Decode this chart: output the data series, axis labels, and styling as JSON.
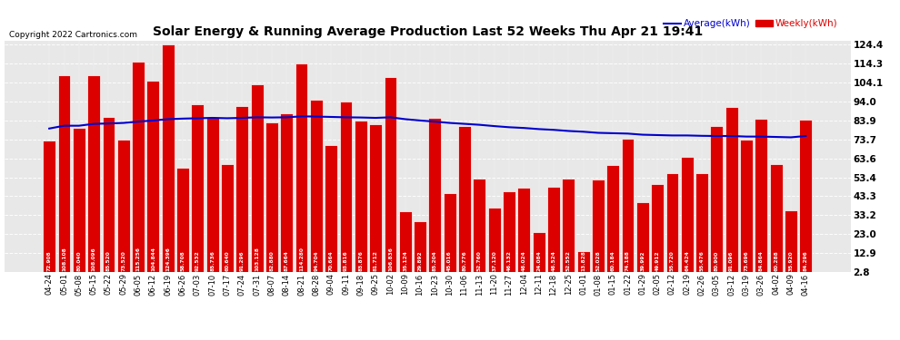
{
  "title": "Solar Energy & Running Average Production Last 52 Weeks Thu Apr 21 19:41",
  "copyright": "Copyright 2022 Cartronics.com",
  "legend_average": "Average(kWh)",
  "legend_weekly": "Weekly(kWh)",
  "bar_color": "#dd0000",
  "bar_edge_color": "#ffffff",
  "average_line_color": "#0000cc",
  "background_color": "#e8e8e8",
  "ylim_min": 2.8,
  "ylim_max": 124.4,
  "yticks": [
    2.8,
    12.9,
    23.0,
    33.2,
    43.3,
    53.4,
    63.6,
    73.7,
    83.9,
    94.0,
    104.1,
    114.3,
    124.4
  ],
  "categories": [
    "04-24",
    "05-01",
    "05-08",
    "05-15",
    "05-22",
    "05-29",
    "06-05",
    "06-12",
    "06-19",
    "06-26",
    "07-03",
    "07-10",
    "07-17",
    "07-24",
    "07-31",
    "08-07",
    "08-14",
    "08-21",
    "08-28",
    "09-04",
    "09-11",
    "09-18",
    "09-25",
    "10-02",
    "10-09",
    "10-16",
    "10-23",
    "10-30",
    "11-06",
    "11-13",
    "11-20",
    "11-27",
    "12-04",
    "12-11",
    "12-18",
    "12-25",
    "01-01",
    "01-08",
    "01-15",
    "01-22",
    "01-29",
    "02-05",
    "02-12",
    "02-19",
    "02-26",
    "03-05",
    "03-12",
    "03-19",
    "03-26",
    "04-02",
    "04-09",
    "04-16"
  ],
  "weekly_values": [
    72.908,
    108.108,
    80.04,
    108.096,
    85.52,
    73.52,
    115.256,
    104.844,
    124.396,
    58.708,
    92.532,
    85.736,
    60.64,
    91.296,
    103.128,
    82.88,
    87.664,
    114.28,
    94.704,
    70.664,
    93.816,
    83.876,
    81.712,
    106.836,
    35.124,
    29.892,
    85.204,
    45.016,
    80.776,
    52.76,
    37.12,
    46.132,
    48.024,
    24.084,
    48.524,
    52.552,
    13.828,
    52.028,
    60.184,
    74.188,
    39.992,
    49.912,
    55.72,
    64.424,
    55.476,
    80.9,
    91.096,
    73.696,
    84.864,
    60.288,
    35.92,
    84.296
  ],
  "bar_values_labels": [
    "72.908",
    "108.108",
    "80.040",
    "108.096",
    "85.520",
    "73.520",
    "115.256",
    "104.844",
    "124.396",
    "58.708",
    "92.532",
    "85.736",
    "60.640",
    "91.296",
    "103.128",
    "82.880",
    "87.664",
    "114.280",
    "94.704",
    "70.664",
    "93.816",
    "83.876",
    "81.712",
    "106.836",
    "35.124",
    "29.892",
    "85.204",
    "45.016",
    "80.776",
    "52.760",
    "37.120",
    "46.132",
    "48.024",
    "24.084",
    "48.524",
    "52.552",
    "13.828",
    "52.028",
    "60.184",
    "74.188",
    "39.992",
    "49.912",
    "55.720",
    "64.424",
    "55.476",
    "80.900",
    "91.096",
    "73.696",
    "84.864",
    "60.288",
    "35.920",
    "84.296"
  ],
  "running_avg": [
    79.5,
    81.0,
    81.0,
    82.0,
    82.2,
    82.5,
    83.2,
    83.8,
    84.5,
    84.8,
    85.0,
    85.2,
    85.0,
    85.2,
    85.5,
    85.4,
    85.5,
    86.0,
    85.9,
    85.7,
    85.5,
    85.4,
    85.2,
    85.5,
    84.5,
    83.8,
    83.2,
    82.5,
    82.0,
    81.5,
    80.8,
    80.2,
    79.8,
    79.2,
    78.8,
    78.2,
    77.8,
    77.2,
    77.0,
    76.8,
    76.2,
    76.0,
    75.8,
    75.8,
    75.6,
    75.5,
    75.5,
    75.2,
    75.2,
    75.0,
    74.8,
    75.5
  ]
}
